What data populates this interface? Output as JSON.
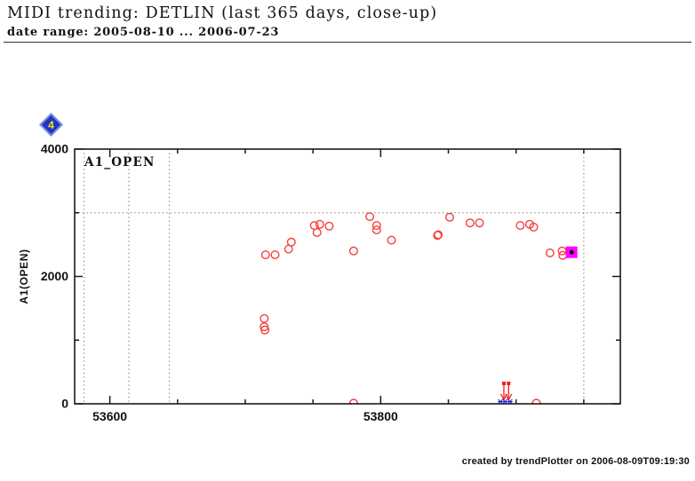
{
  "header": {
    "title": "MIDI trending: DETLIN (last 365 days, close-up)",
    "subtitle": "date range: 2005-08-10 ... 2006-07-23"
  },
  "footer": {
    "credit": "created by trendPlotter on 2006-08-09T09:19:30"
  },
  "badge": {
    "value": "4"
  },
  "chart_data": {
    "type": "scatter",
    "inner_label": "A1_OPEN",
    "ylabel": "A1(OPEN)",
    "xlim": [
      53574,
      53977
    ],
    "ylim": [
      0,
      4000
    ],
    "x_ticks": [
      {
        "value": 53600,
        "label": "53600"
      },
      {
        "value": 53800,
        "label": "53800"
      }
    ],
    "x_minor_ticks": [
      53650,
      53700,
      53750,
      53850,
      53900,
      53950
    ],
    "y_ticks": [
      {
        "value": 0,
        "label": "0"
      },
      {
        "value": 2000,
        "label": "2000"
      },
      {
        "value": 4000,
        "label": "4000"
      }
    ],
    "y_minor_ticks": [
      1000,
      3000
    ],
    "grid_vertical_x": [
      53581,
      53614,
      53644,
      53950
    ],
    "grid_horizontal_y": [
      3000
    ],
    "series": [
      {
        "name": "A1_OPEN",
        "marker": "open-circle",
        "color": "#f73e3e",
        "points": [
          [
            53714,
            1340
          ],
          [
            53714,
            1210
          ],
          [
            53714.5,
            1160
          ],
          [
            53715,
            2340
          ],
          [
            53722,
            2340
          ],
          [
            53732,
            2430
          ],
          [
            53734,
            2540
          ],
          [
            53751,
            2800
          ],
          [
            53753,
            2690
          ],
          [
            53755,
            2820
          ],
          [
            53762,
            2790
          ],
          [
            53780,
            2400
          ],
          [
            53780,
            10
          ],
          [
            53792,
            2940
          ],
          [
            53797,
            2800
          ],
          [
            53797,
            2730
          ],
          [
            53808,
            2570
          ],
          [
            53842,
            2645
          ],
          [
            53842.5,
            2655
          ],
          [
            53851,
            2930
          ],
          [
            53866,
            2840
          ],
          [
            53873,
            2840
          ],
          [
            53903,
            2800
          ],
          [
            53910,
            2820
          ],
          [
            53913,
            2775
          ],
          [
            53915,
            10
          ],
          [
            53925,
            2370
          ],
          [
            53934,
            2400
          ],
          [
            53934.5,
            2330
          ]
        ]
      }
    ],
    "highlight_point": {
      "x": 53941,
      "y": 2380,
      "fill": "#ff00ff",
      "dot": "#000000"
    },
    "offscale_low_arrows_x": [
      53891,
      53894.5
    ],
    "offscale_low_marks_x": [
      53888.5,
      53891.8,
      53895.5
    ],
    "colors": {
      "axis": "#1a1a1a",
      "grid": "#4d4d4d",
      "arrows": "#f51d1d",
      "offscale_marks": "#2222cc"
    }
  }
}
